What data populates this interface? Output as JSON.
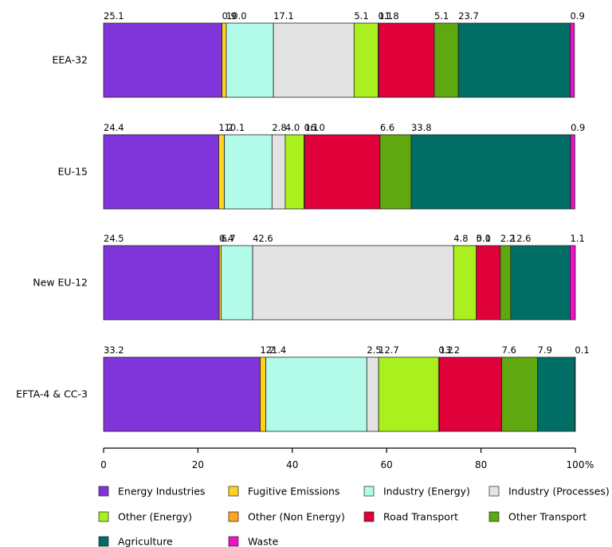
{
  "chart_data": {
    "type": "bar",
    "orientation": "horizontal",
    "stacked": true,
    "categories": [
      "EEA-32",
      "EU-15",
      "New EU-12",
      "EFTA-4 & CC-3"
    ],
    "series": [
      {
        "name": "Energy Industries",
        "color": "#7f35d9",
        "values": [
          25.1,
          24.4,
          24.5,
          33.2
        ]
      },
      {
        "name": "Fugitive Emissions",
        "color": "#ffd21f",
        "values": [
          0.9,
          1.2,
          0.4,
          1.2
        ]
      },
      {
        "name": "Industry (Energy)",
        "color": "#b2fbe9",
        "values": [
          10.0,
          10.1,
          6.7,
          21.4
        ]
      },
      {
        "name": "Industry (Processes)",
        "color": "#e3e3e3",
        "values": [
          17.1,
          2.8,
          42.6,
          2.5
        ]
      },
      {
        "name": "Other (Energy)",
        "color": "#aaf01f",
        "values": [
          5.1,
          4.0,
          4.8,
          12.7
        ]
      },
      {
        "name": "Other (Non Energy)",
        "color": "#ffa51f",
        "values": [
          0.1,
          0.1,
          0.0,
          0.2
        ]
      },
      {
        "name": "Road Transport",
        "color": "#e0003a",
        "values": [
          11.8,
          16.0,
          5.1,
          13.2
        ]
      },
      {
        "name": "Other Transport",
        "color": "#5fa80f",
        "values": [
          5.1,
          6.6,
          2.2,
          7.6
        ]
      },
      {
        "name": "Agriculture",
        "color": "#006e65",
        "values": [
          23.7,
          33.8,
          12.6,
          7.9
        ]
      },
      {
        "name": "Waste",
        "color": "#ee11cc",
        "values": [
          0.9,
          0.9,
          1.1,
          0.1
        ]
      }
    ],
    "value_labels": [
      [
        "25.1",
        "0.9",
        "10.0",
        "17.1",
        "5.1",
        "0.1",
        "11.8",
        "5.1",
        "23.7",
        "0.9"
      ],
      [
        "24.4",
        "1.2",
        "10.1",
        "2.8",
        "4.0",
        "0.1",
        "16.0",
        "6.6",
        "33.8",
        "0.9"
      ],
      [
        "24.5",
        "0.4",
        "6.7",
        "42.6",
        "4.8",
        "0.0",
        "5.1",
        "2.2",
        "12.6",
        "1.1"
      ],
      [
        "33.2",
        "1.2",
        "21.4",
        "2.5",
        "12.7",
        "0.2",
        "13.2",
        "7.6",
        "7.9",
        "0.1"
      ]
    ],
    "x_ticks": [
      "0",
      "20",
      "40",
      "60",
      "80",
      "100"
    ],
    "x_unit": "%",
    "xlim": [
      0,
      100
    ],
    "grid": false,
    "legend_position": "bottom"
  }
}
